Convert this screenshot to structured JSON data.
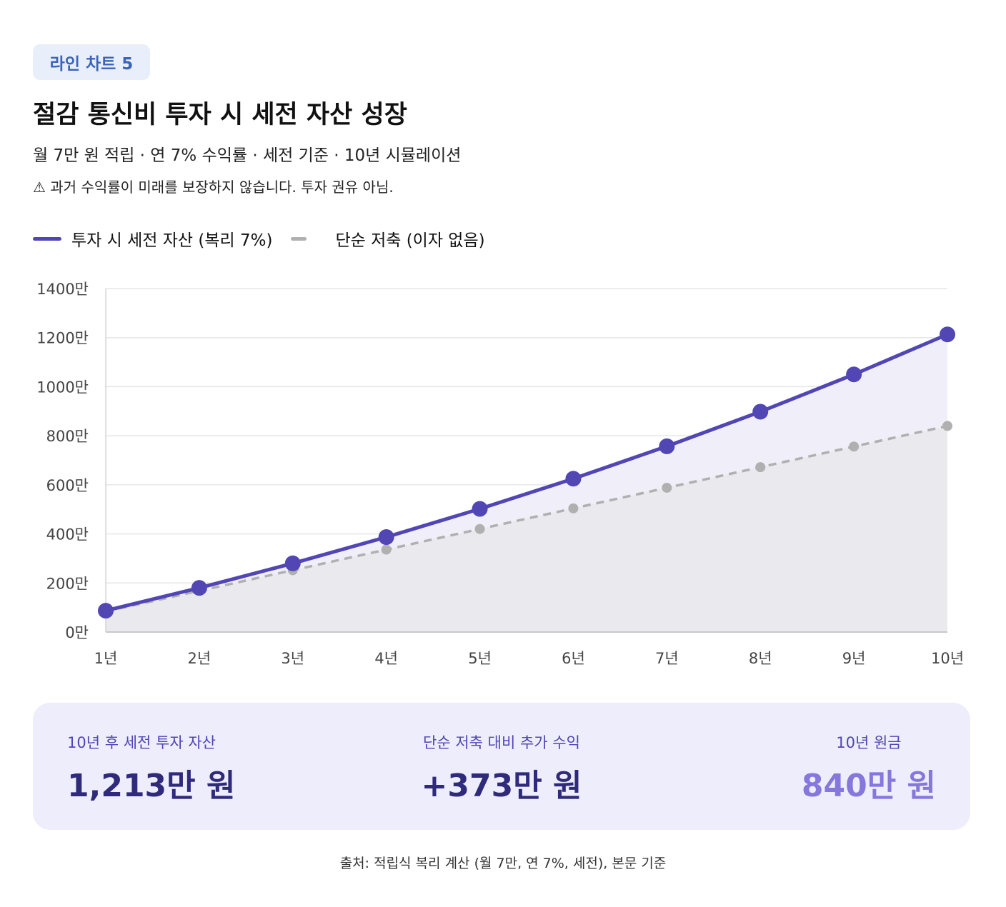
{
  "badge": "라인 차트 5",
  "title": "절감 통신비 투자 시 세전 자산 성장",
  "subtitle": "월 7만 원 적립 · 연 7% 수익률 · 세전 기준 · 10년 시뮬레이션",
  "warning": "⚠ 과거 수익률이 미래를 보장하지 않습니다. 투자 권유 아님.",
  "legend": {
    "invest": "투자 시 세전 자산 (복리 7%)",
    "saving": "단순 저축 (이자 없음)"
  },
  "summary": {
    "invest_label": "10년 후 세전 투자 자산",
    "invest_value": "1,213만 원",
    "extra_label": "단순 저축 대비 추가 수익",
    "extra_value": "+373만 원",
    "principal_label": "10년 원금",
    "principal_value": "840만 원"
  },
  "source": "출처: 적립식 복리 계산 (월 7만, 연 7%, 세전), 본문 기준",
  "colors": {
    "invest": "#5146b4",
    "saving": "#b0b0b0",
    "invest_fill": "#f0eff9",
    "saving_fill": "#e9e9ee",
    "grid": "#e6e6e6"
  },
  "chart_data": {
    "type": "line",
    "x": [
      "1년",
      "2년",
      "3년",
      "4년",
      "5년",
      "6년",
      "7년",
      "8년",
      "9년",
      "10년"
    ],
    "series": [
      {
        "name": "투자 시 세전 자산 (복리 7%)",
        "values": [
          87,
          180,
          280,
          387,
          502,
          625,
          757,
          898,
          1050,
          1213
        ],
        "style": "solid"
      },
      {
        "name": "단순 저축 (이자 없음)",
        "values": [
          84,
          168,
          252,
          336,
          420,
          504,
          588,
          672,
          756,
          840
        ],
        "style": "dashed"
      }
    ],
    "yticks": [
      "0만",
      "200만",
      "400만",
      "600만",
      "800만",
      "1000만",
      "1200만",
      "1400만"
    ],
    "ylim": [
      0,
      1400
    ],
    "grid": true,
    "legend": "top-left"
  }
}
